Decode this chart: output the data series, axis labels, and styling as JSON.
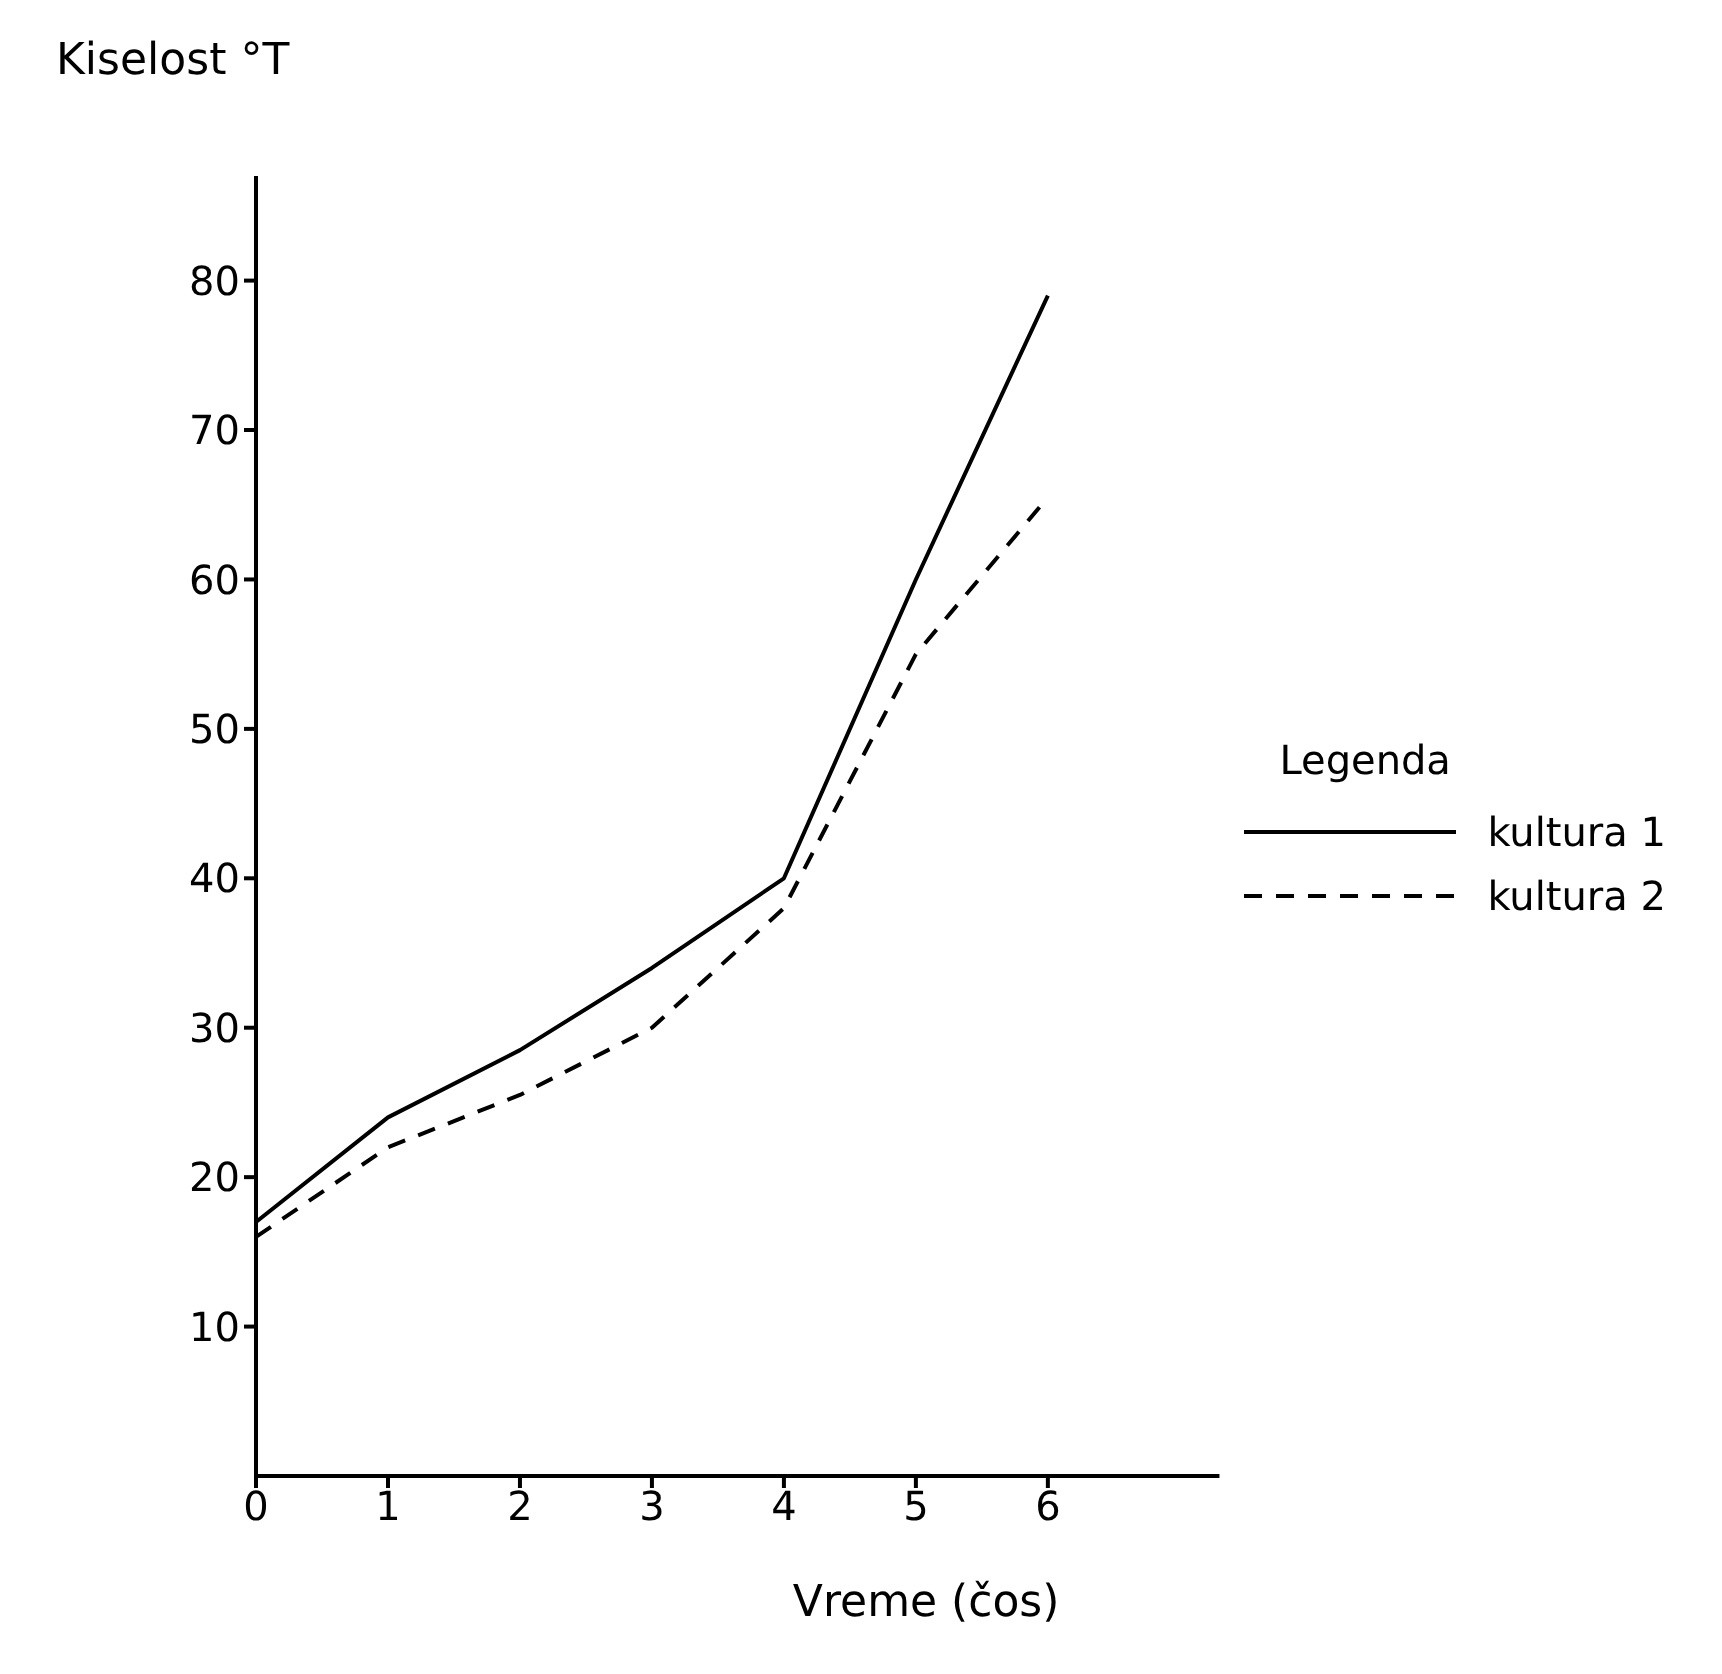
{
  "chart_data": {
    "type": "line",
    "ylabel": "Kiselost °T",
    "xlabel": "Vreme (čos)",
    "legend_title": "Legenda",
    "legend": "right",
    "grid": false,
    "marker": "none",
    "x": [
      0,
      1,
      2,
      3,
      4,
      5,
      6
    ],
    "xlim": [
      0,
      7.3
    ],
    "xticks": [
      0,
      1,
      2,
      3,
      4,
      5,
      6
    ],
    "ylim": [
      0,
      87
    ],
    "yticks": [
      10,
      20,
      30,
      40,
      50,
      60,
      70,
      80
    ],
    "series": [
      {
        "name": "kultura 1",
        "color": "#000000",
        "line_style": "solid",
        "values": [
          17,
          24,
          28.5,
          34,
          40,
          60,
          79
        ]
      },
      {
        "name": "kultura 2",
        "color": "#000000",
        "line_style": "dashed",
        "values": [
          16,
          22,
          25.5,
          30,
          38,
          55,
          65.5
        ]
      }
    ]
  }
}
